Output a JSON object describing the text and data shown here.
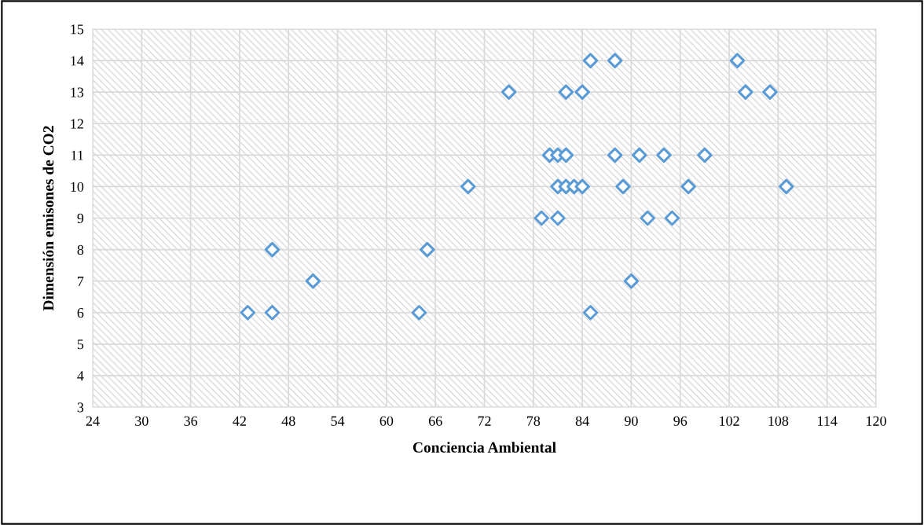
{
  "chart_data": {
    "type": "scatter",
    "xlabel": "Conciencia Ambiental",
    "ylabel": "Dimensión emisones de CO2",
    "x": [
      43,
      46,
      46,
      51,
      64,
      65,
      70,
      75,
      79,
      80,
      81,
      81,
      81,
      82,
      82,
      82,
      83,
      84,
      84,
      85,
      85,
      88,
      88,
      89,
      90,
      91,
      92,
      94,
      95,
      97,
      99,
      103,
      104,
      107,
      109
    ],
    "values": [
      6,
      6,
      8,
      7,
      6,
      8,
      10,
      13,
      9,
      11,
      11,
      10,
      9,
      13,
      11,
      10,
      10,
      13,
      10,
      14,
      6,
      14,
      11,
      10,
      7,
      11,
      9,
      11,
      9,
      10,
      11,
      14,
      13,
      13,
      10
    ],
    "color": "#5b9bd5",
    "marker": "diamond",
    "grid": true,
    "xlim": [
      24,
      120
    ],
    "xticks": [
      24,
      30,
      36,
      42,
      48,
      54,
      60,
      66,
      72,
      78,
      84,
      90,
      96,
      102,
      108,
      114,
      120
    ],
    "ylim": [
      3,
      15
    ],
    "yticks": [
      3,
      4,
      5,
      6,
      7,
      8,
      9,
      10,
      11,
      12,
      13,
      14,
      15
    ]
  }
}
